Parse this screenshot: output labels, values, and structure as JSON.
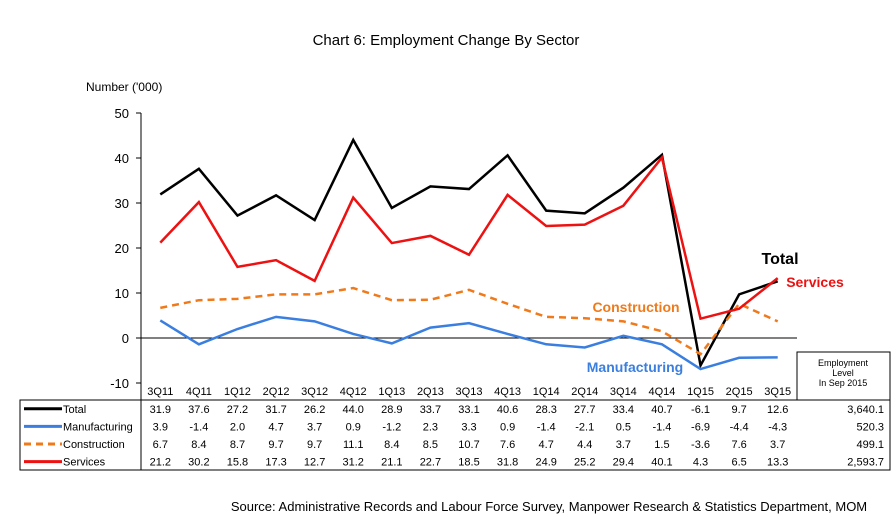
{
  "chart_data": {
    "type": "line",
    "title": "Chart 6: Employment Change By Sector",
    "ylabel": "Number ('000)",
    "xlabel": "",
    "ylim": [
      -10,
      50
    ],
    "yticks": [
      -10,
      0,
      10,
      20,
      30,
      40,
      50
    ],
    "categories": [
      "3Q11",
      "4Q11",
      "1Q12",
      "2Q12",
      "3Q12",
      "4Q12",
      "1Q13",
      "2Q13",
      "3Q13",
      "4Q13",
      "1Q14",
      "2Q14",
      "3Q14",
      "4Q14",
      "1Q15",
      "2Q15",
      "3Q15"
    ],
    "series": [
      {
        "name": "Total",
        "label": "Total",
        "color": "#000000",
        "dashed": false,
        "values": [
          31.9,
          37.6,
          27.2,
          31.7,
          26.2,
          44.0,
          28.9,
          33.7,
          33.1,
          40.6,
          28.3,
          27.7,
          33.4,
          40.7,
          -6.1,
          9.7,
          12.6
        ],
        "level": "3,640.1"
      },
      {
        "name": "Manufacturing",
        "label": "Manufacturing",
        "color": "#3a7fe0",
        "dashed": false,
        "values": [
          3.9,
          -1.4,
          2.0,
          4.7,
          3.7,
          0.9,
          -1.2,
          2.3,
          3.3,
          0.9,
          -1.4,
          -2.1,
          0.5,
          -1.4,
          -6.9,
          -4.4,
          -4.3
        ],
        "level": "520.3"
      },
      {
        "name": "Construction",
        "label": "Construction",
        "color": "#f07a1a",
        "dashed": true,
        "values": [
          6.7,
          8.4,
          8.7,
          9.7,
          9.7,
          11.1,
          8.4,
          8.5,
          10.7,
          7.6,
          4.7,
          4.4,
          3.7,
          1.5,
          -3.6,
          7.6,
          3.7
        ],
        "level": "499.1"
      },
      {
        "name": "Services",
        "label": "Services",
        "color": "#ee1111",
        "dashed": false,
        "values": [
          21.2,
          30.2,
          15.8,
          17.3,
          12.7,
          31.2,
          21.1,
          22.7,
          18.5,
          31.8,
          24.9,
          25.2,
          29.4,
          40.1,
          4.3,
          6.5,
          13.3
        ],
        "level": "2,593.7"
      }
    ],
    "level_header": [
      "Employment",
      "Level",
      "In Sep 2015"
    ],
    "legend": "table-below",
    "grid": false
  },
  "source": "Source: Administrative Records and Labour Force Survey, Manpower Research & Statistics Department, MOM"
}
